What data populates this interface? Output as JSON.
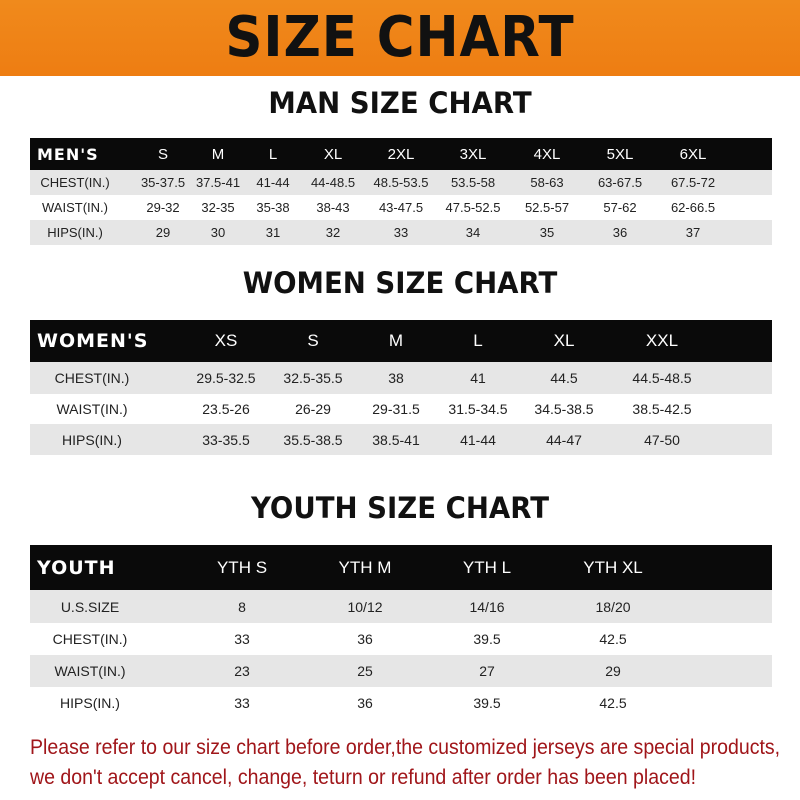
{
  "title": "SIZE CHART",
  "colors": {
    "banner": "#ee7d12",
    "header_row": "#0a0a0a",
    "stripe": "#e6e6e6",
    "note": "#a0161a"
  },
  "men": {
    "title": "MAN SIZE CHART",
    "header": "MEN'S",
    "sizes": [
      "S",
      "M",
      "L",
      "XL",
      "2XL",
      "3XL",
      "4XL",
      "5XL",
      "6XL"
    ],
    "rows": [
      {
        "label": "CHEST(IN.)",
        "values": [
          "35-37.5",
          "37.5-41",
          "41-44",
          "44-48.5",
          "48.5-53.5",
          "53.5-58",
          "58-63",
          "63-67.5",
          "67.5-72"
        ]
      },
      {
        "label": "WAIST(IN.)",
        "values": [
          "29-32",
          "32-35",
          "35-38",
          "38-43",
          "43-47.5",
          "47.5-52.5",
          "52.5-57",
          "57-62",
          "62-66.5"
        ]
      },
      {
        "label": "HIPS(IN.)",
        "values": [
          "29",
          "30",
          "31",
          "32",
          "33",
          "34",
          "35",
          "36",
          "37"
        ]
      }
    ]
  },
  "women": {
    "title": "WOMEN SIZE CHART",
    "header": "WOMEN'S",
    "sizes": [
      "XS",
      "S",
      "M",
      "L",
      "XL",
      "XXL"
    ],
    "rows": [
      {
        "label": "CHEST(IN.)",
        "values": [
          "29.5-32.5",
          "32.5-35.5",
          "38",
          "41",
          "44.5",
          "44.5-48.5"
        ]
      },
      {
        "label": "WAIST(IN.)",
        "values": [
          "23.5-26",
          "26-29",
          "29-31.5",
          "31.5-34.5",
          "34.5-38.5",
          "38.5-42.5"
        ]
      },
      {
        "label": "HIPS(IN.)",
        "values": [
          "33-35.5",
          "35.5-38.5",
          "38.5-41",
          "41-44",
          "44-47",
          "47-50"
        ]
      }
    ]
  },
  "youth": {
    "title": "YOUTH SIZE CHART",
    "header": "YOUTH",
    "sizes": [
      "YTH S",
      "YTH M",
      "YTH L",
      "YTH XL"
    ],
    "rows": [
      {
        "label": "U.S.SIZE",
        "values": [
          "8",
          "10/12",
          "14/16",
          "18/20"
        ]
      },
      {
        "label": "CHEST(IN.)",
        "values": [
          "33",
          "36",
          "39.5",
          "42.5"
        ]
      },
      {
        "label": "WAIST(IN.)",
        "values": [
          "23",
          "25",
          "27",
          "29"
        ]
      },
      {
        "label": "HIPS(IN.)",
        "values": [
          "33",
          "36",
          "39.5",
          "42.5"
        ]
      }
    ]
  },
  "note": {
    "line1": "Please refer to our size chart before order,the customized jerseys are special products,",
    "line2": "we don't accept cancel, change, teturn or refund after order has been placed!"
  }
}
